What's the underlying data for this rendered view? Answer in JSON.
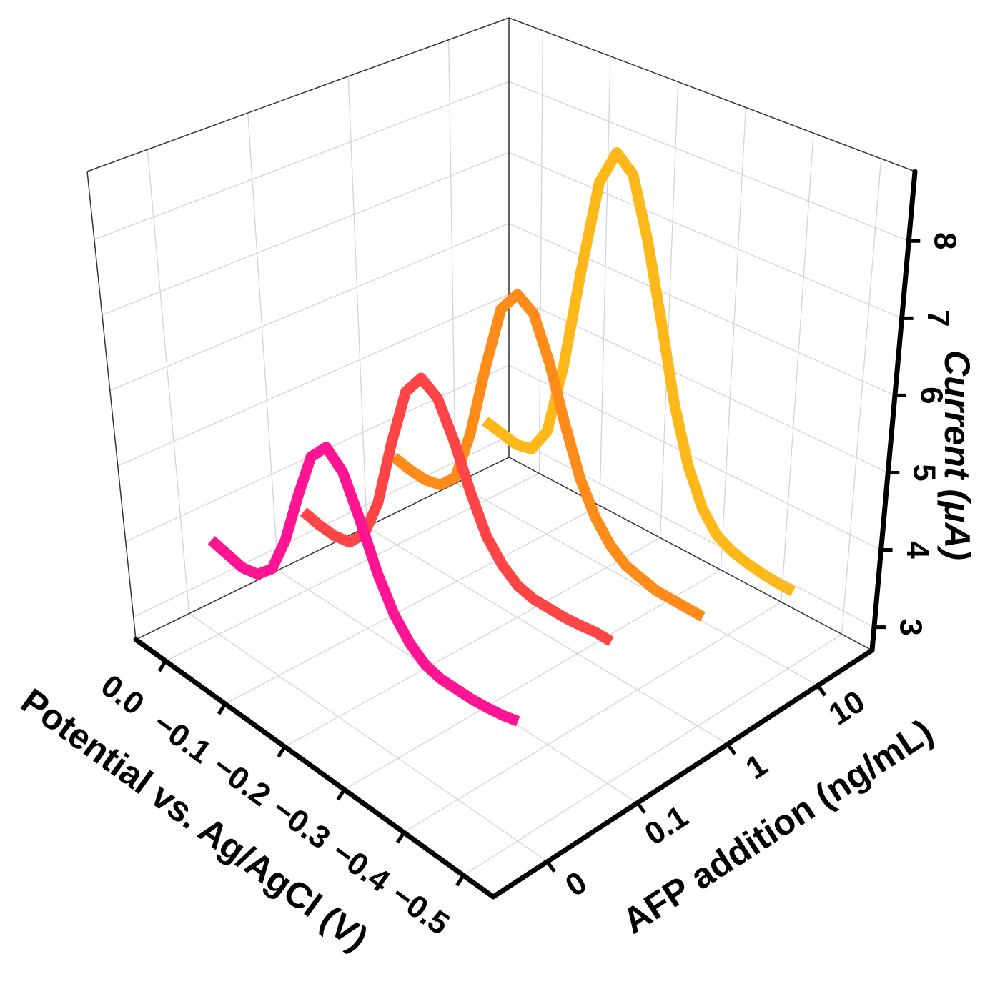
{
  "chart_data": {
    "type": "ribbon3d",
    "x_label": "Potential vs. Ag/AgCl (V)",
    "category_label": "AFP addition (ng/mL)",
    "z_label": "Current (μA)",
    "x": [
      0,
      -0.025,
      -0.05,
      -0.075,
      -0.1,
      -0.125,
      -0.15,
      -0.175,
      -0.2,
      -0.225,
      -0.25,
      -0.275,
      -0.3,
      -0.325,
      -0.35,
      -0.375,
      -0.4,
      -0.425,
      -0.45,
      -0.475,
      -0.5
    ],
    "xlim": [
      0.05,
      -0.55
    ],
    "xticks": [
      {
        "value": 0,
        "label": "0.0"
      },
      {
        "value": -0.1,
        "label": "−0.1"
      },
      {
        "value": -0.2,
        "label": "−0.2"
      },
      {
        "value": -0.3,
        "label": "−0.3"
      },
      {
        "value": -0.4,
        "label": "−0.4"
      },
      {
        "value": -0.5,
        "label": "−0.5"
      }
    ],
    "categories": [
      "0",
      "0.1",
      "1",
      "10"
    ],
    "zlim": [
      2.7,
      8.9
    ],
    "zticks": [
      3,
      4,
      5,
      6,
      7,
      8
    ],
    "grid": true,
    "series": [
      {
        "color": "#ff1493",
        "values": [
          3.95,
          3.9,
          3.85,
          3.9,
          4.1,
          4.6,
          5.3,
          5.95,
          6.2,
          6.0,
          5.5,
          4.95,
          4.55,
          4.3,
          4.15,
          4.1,
          4.1,
          4.1,
          4.12,
          4.15,
          4.2
        ]
      },
      {
        "color": "#ff4545",
        "values": [
          3.75,
          3.7,
          3.68,
          3.72,
          3.95,
          4.5,
          5.4,
          6.2,
          6.5,
          6.35,
          5.9,
          5.35,
          4.9,
          4.65,
          4.5,
          4.45,
          4.45,
          4.45,
          4.47,
          4.5,
          4.5
        ]
      },
      {
        "color": "#ff8c1a",
        "values": [
          3.9,
          3.85,
          3.83,
          3.88,
          4.1,
          4.8,
          5.8,
          6.7,
          7.0,
          6.85,
          6.3,
          5.6,
          5.0,
          4.6,
          4.35,
          4.2,
          4.15,
          4.1,
          4.1,
          4.1,
          4.1
        ]
      },
      {
        "color": "#ffb81a",
        "values": [
          3.8,
          3.75,
          3.7,
          3.75,
          4.1,
          5.1,
          6.5,
          7.8,
          8.3,
          8.1,
          7.3,
          6.3,
          5.3,
          4.6,
          4.15,
          3.9,
          3.8,
          3.75,
          3.72,
          3.7,
          3.7
        ]
      }
    ]
  }
}
